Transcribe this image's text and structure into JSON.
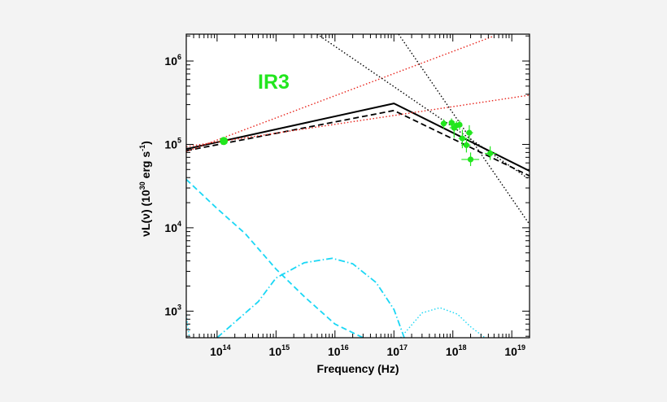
{
  "chart_data": {
    "type": "line",
    "title": "",
    "annotation": "IR3",
    "xlabel": "Frequency (Hz)",
    "ylabel": {
      "main": "νL(ν) (10",
      "exp": "30",
      "unit": " erg s",
      "unit_exp": "-1",
      "close": ")"
    },
    "log_x": true,
    "log_y": true,
    "xlim": [
      30000000000000.0,
      2e+19
    ],
    "ylim": [
      480,
      2100000
    ],
    "grid": false,
    "x_ticks": [
      {
        "value": 100000000000000.0,
        "base": "10",
        "exp": "14"
      },
      {
        "value": 1000000000000000.0,
        "base": "10",
        "exp": "15"
      },
      {
        "value": 1e+16,
        "base": "10",
        "exp": "16"
      },
      {
        "value": 1e+17,
        "base": "10",
        "exp": "17"
      },
      {
        "value": 1e+18,
        "base": "10",
        "exp": "18"
      },
      {
        "value": 1e+19,
        "base": "10",
        "exp": "19"
      }
    ],
    "y_ticks": [
      {
        "value": 1000,
        "base": "10",
        "exp": "3"
      },
      {
        "value": 10000,
        "base": "10",
        "exp": "4"
      },
      {
        "value": 100000,
        "base": "10",
        "exp": "5"
      },
      {
        "value": 1000000,
        "base": "10",
        "exp": "6"
      }
    ],
    "colors": {
      "model": "#000000",
      "red": "#e8241c",
      "cyan": "#1ad7f5",
      "data": "#22e61e",
      "annotation": "#22e61e"
    },
    "series": [
      {
        "style": "solid",
        "color": "#000000",
        "x": [
          30000000000000.0,
          1e+17,
          2e+19
        ],
        "y": [
          88000,
          310000,
          48000
        ]
      },
      {
        "style": "dashed",
        "color": "#000000",
        "x": [
          30000000000000.0,
          1e+17,
          2e+19
        ],
        "y": [
          84000,
          255000,
          42000
        ]
      },
      {
        "style": "dotted",
        "color": "#e8241c",
        "x": [
          30000000000000.0,
          5e+18
        ],
        "y": [
          82000,
          2000000
        ]
      },
      {
        "style": "dotted",
        "color": "#e8241c",
        "x": [
          30000000000000.0,
          2e+19
        ],
        "y": [
          94000,
          390000
        ]
      },
      {
        "style": "dotted",
        "color": "#000000",
        "x": [
          5000000000000000.0,
          2e+19
        ],
        "y": [
          2100000,
          38000
        ]
      },
      {
        "style": "dotted",
        "color": "#000000",
        "x": [
          1.2e+17,
          2e+19
        ],
        "y": [
          2100000,
          11000
        ]
      },
      {
        "style": "dashed",
        "color": "#1ad7f5",
        "x": [
          30000000000000.0,
          100000000000000.0,
          300000000000000.0,
          1000000000000000.0,
          3000000000000000.0,
          1e+16,
          3e+16
        ],
        "y": [
          38000,
          17000,
          8500,
          3200,
          1500,
          700,
          480
        ]
      },
      {
        "style": "dashdot",
        "color": "#1ad7f5",
        "x": [
          100000000000000.0,
          500000000000000.0,
          1000000000000000.0,
          3000000000000000.0,
          9000000000000000.0,
          2e+16,
          5e+16,
          1e+17,
          1.5e+17
        ],
        "y": [
          480,
          1300,
          2500,
          3800,
          4300,
          3700,
          2200,
          1050,
          480
        ]
      },
      {
        "style": "dotted",
        "color": "#1ad7f5",
        "x": [
          1.3e+17,
          3e+17,
          6e+17,
          1.2e+18,
          2e+18,
          3.5e+18
        ],
        "y": [
          480,
          950,
          1100,
          920,
          650,
          480
        ]
      },
      {
        "style": "dotted",
        "color": "#1ad7f5",
        "x": [
          30000000000000.0,
          34000000000000.0
        ],
        "y": [
          900,
          480
        ]
      }
    ],
    "points": [
      {
        "x": 130000000000000.0,
        "y": 110000,
        "x_err": [
          120000000000000.0,
          140000000000000.0
        ],
        "y_err": [
          103000,
          118000
        ]
      },
      {
        "x": 7e+17,
        "y": 178000,
        "x_err": [
          6.2e+17,
          8e+17
        ],
        "y_err": [
          155000,
          200000
        ]
      },
      {
        "x": 9.5e+17,
        "y": 182000,
        "x_err": [
          8.5e+17,
          1.05e+18
        ],
        "y_err": [
          160000,
          205000
        ]
      },
      {
        "x": 1.15e+18,
        "y": 168000,
        "x_err": [
          1.05e+18,
          1.28e+18
        ],
        "y_err": [
          148000,
          190000
        ]
      },
      {
        "x": 1.3e+18,
        "y": 172000,
        "x_err": [
          1.18e+18,
          1.45e+18
        ],
        "y_err": [
          150000,
          195000
        ]
      },
      {
        "x": 1.05e+18,
        "y": 158000,
        "x_err": [
          8.8e+17,
          1.2e+18
        ],
        "y_err": [
          120000,
          190000
        ]
      },
      {
        "x": 1.45e+18,
        "y": 118000,
        "x_err": [
          1.25e+18,
          1.7e+18
        ],
        "y_err": [
          90000,
          150000
        ]
      },
      {
        "x": 1.9e+18,
        "y": 138000,
        "x_err": [
          1.65e+18,
          2.2e+18
        ],
        "y_err": [
          110000,
          170000
        ]
      },
      {
        "x": 1.7e+18,
        "y": 98000,
        "x_err": [
          1.4e+18,
          2e+18
        ],
        "y_err": [
          80000,
          120000
        ]
      },
      {
        "x": 4.3e+18,
        "y": 78000,
        "x_err": [
          3.5e+18,
          5.5e+18
        ],
        "y_err": [
          65000,
          95000
        ]
      },
      {
        "x": 2e+18,
        "y": 66000,
        "x_err": [
          1.4e+18,
          2.8e+18
        ],
        "y_err": [
          55000,
          80000
        ]
      }
    ]
  }
}
